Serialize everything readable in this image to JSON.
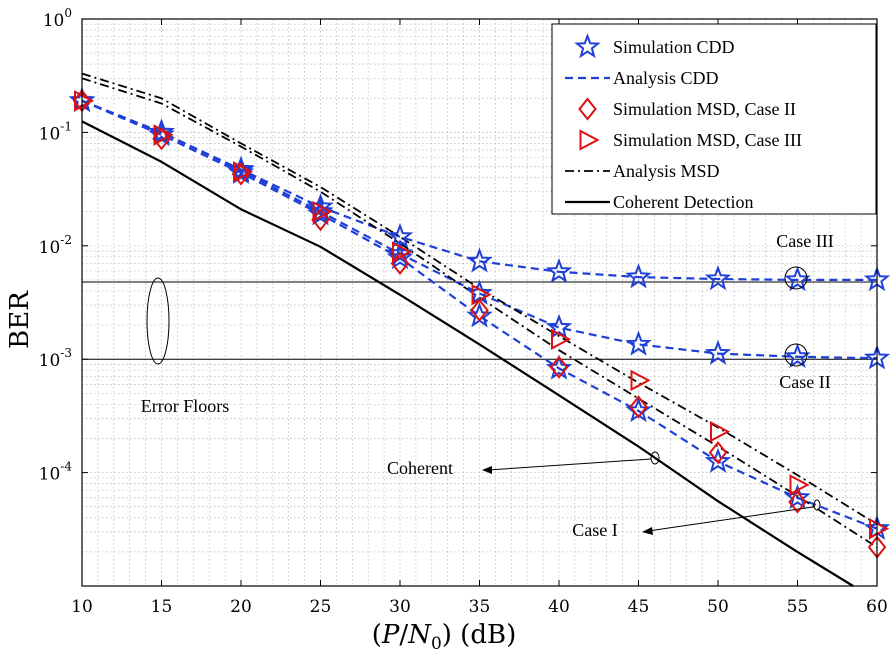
{
  "chart_data": {
    "type": "line",
    "xlabel": "(P/N₀) (dB)",
    "ylabel": "BER",
    "xlim": [
      10,
      60
    ],
    "ylim": [
      1e-05,
      1
    ],
    "yscale": "log",
    "x_ticks": [
      10,
      15,
      20,
      25,
      30,
      35,
      40,
      45,
      50,
      55,
      60
    ],
    "y_ticks": [
      {
        "value": 1,
        "label": "10",
        "exp": "0"
      },
      {
        "value": 0.1,
        "label": "10",
        "exp": "-1"
      },
      {
        "value": 0.01,
        "label": "10",
        "exp": "-2"
      },
      {
        "value": 0.001,
        "label": "10",
        "exp": "-3"
      },
      {
        "value": 0.0001,
        "label": "10",
        "exp": "-4"
      }
    ],
    "grid": true,
    "legend_position": "top-right",
    "series": [
      {
        "name": "Simulation CDD",
        "style": "star",
        "color": "#1f3fd6",
        "x": [
          10,
          15,
          20,
          25,
          30,
          35,
          40,
          45,
          50,
          55,
          60
        ],
        "y": [
          0.19,
          0.1,
          0.047,
          0.022,
          0.012,
          0.0073,
          0.0059,
          0.0053,
          0.0051,
          0.005,
          0.005
        ]
      },
      {
        "name": "",
        "style": "star",
        "color": "#1f3fd6",
        "x": [
          10,
          15,
          20,
          25,
          30,
          35,
          40,
          45,
          50,
          55,
          60
        ],
        "y": [
          0.19,
          0.1,
          0.046,
          0.02,
          0.0085,
          0.0038,
          0.0019,
          0.00135,
          0.00112,
          0.00105,
          0.00102
        ]
      },
      {
        "name": "",
        "style": "star",
        "color": "#1f3fd6",
        "x": [
          10,
          15,
          20,
          25,
          30,
          35,
          40,
          45,
          50,
          55,
          60
        ],
        "y": [
          0.19,
          0.095,
          0.044,
          0.019,
          0.0078,
          0.0024,
          0.00083,
          0.00035,
          0.000125,
          6e-05,
          3.2e-05
        ]
      },
      {
        "name": "Analysis CDD",
        "style": "dash",
        "color": "#1f3fd6",
        "x": [
          10,
          15,
          20,
          25,
          30,
          35,
          40,
          45,
          50,
          55,
          60
        ],
        "y": [
          0.19,
          0.1,
          0.047,
          0.022,
          0.012,
          0.0073,
          0.0059,
          0.0053,
          0.0051,
          0.005,
          0.005
        ]
      },
      {
        "name": "",
        "style": "dash",
        "color": "#1f3fd6",
        "x": [
          10,
          15,
          20,
          25,
          30,
          35,
          40,
          45,
          50,
          55,
          60
        ],
        "y": [
          0.19,
          0.1,
          0.046,
          0.02,
          0.0085,
          0.0038,
          0.0019,
          0.00135,
          0.00112,
          0.00105,
          0.00102
        ]
      },
      {
        "name": "",
        "style": "dash",
        "color": "#1f3fd6",
        "x": [
          10,
          15,
          20,
          25,
          30,
          35,
          40,
          45,
          50,
          55,
          60
        ],
        "y": [
          0.19,
          0.095,
          0.044,
          0.019,
          0.0078,
          0.0024,
          0.00083,
          0.00035,
          0.000125,
          6e-05,
          3.2e-05
        ]
      },
      {
        "name": "Simulation MSD, Case II",
        "style": "diamond",
        "color": "#e01010",
        "x": [
          10,
          15,
          20,
          25,
          30,
          35,
          40,
          45,
          50,
          55,
          60
        ],
        "y": [
          0.19,
          0.088,
          0.043,
          0.017,
          0.007,
          0.0027,
          0.00085,
          0.00038,
          0.00015,
          5.5e-05,
          2.2e-05
        ]
      },
      {
        "name": "Simulation MSD, Case III",
        "style": "triangle",
        "color": "#e01010",
        "x": [
          10,
          15,
          20,
          25,
          30,
          35,
          40,
          45,
          50,
          55,
          60
        ],
        "y": [
          0.19,
          0.095,
          0.045,
          0.02,
          0.0088,
          0.0037,
          0.0015,
          0.00065,
          0.00023,
          7.8e-05,
          3.2e-05
        ]
      },
      {
        "name": "Analysis MSD",
        "style": "dashdot",
        "color": "#000000",
        "x": [
          10,
          15,
          20,
          25,
          30,
          35,
          40,
          45,
          50,
          55,
          60
        ],
        "y": [
          0.33,
          0.2,
          0.08,
          0.033,
          0.012,
          0.0042,
          0.0016,
          0.00062,
          0.00025,
          9.5e-05,
          3.5e-05
        ]
      },
      {
        "name": "",
        "style": "dashdot",
        "color": "#000000",
        "x": [
          10,
          15,
          20,
          25,
          30,
          35,
          40,
          45,
          50,
          55,
          60
        ],
        "y": [
          0.3,
          0.18,
          0.075,
          0.03,
          0.0105,
          0.0035,
          0.0012,
          0.00045,
          0.00017,
          6.2e-05,
          2.2e-05
        ]
      },
      {
        "name": "Coherent Detection",
        "style": "solid",
        "color": "#000000",
        "x": [
          10,
          15,
          20,
          25,
          30,
          35,
          40,
          45,
          50,
          55,
          58.5
        ],
        "y": [
          0.125,
          0.055,
          0.021,
          0.0098,
          0.0037,
          0.00135,
          0.00048,
          0.00017,
          5.6e-05,
          2e-05,
          1e-05
        ]
      }
    ],
    "floors": [
      0.0048,
      0.001
    ],
    "annotations": {
      "case3": "Case III",
      "case2": "Case II",
      "error_floors": "Error Floors",
      "coherent": "Coherent",
      "case1": "Case I"
    }
  }
}
